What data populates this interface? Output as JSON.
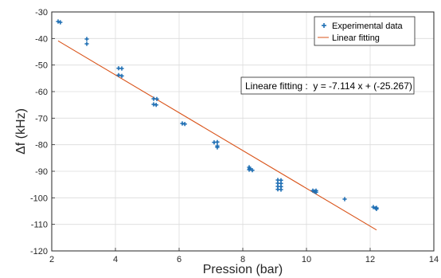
{
  "chart_data": {
    "type": "scatter",
    "xlabel": "Pression (bar)",
    "ylabel": "Δf (kHz)",
    "xlim": [
      2,
      14
    ],
    "ylim": [
      -120,
      -30
    ],
    "xticks": [
      2,
      4,
      6,
      8,
      10,
      12,
      14
    ],
    "yticks": [
      -120,
      -110,
      -100,
      -90,
      -80,
      -70,
      -60,
      -50,
      -40,
      -30
    ],
    "grid": true,
    "legend_position": "top-right",
    "series": [
      {
        "name": "Experimental data",
        "kind": "markers",
        "color": "#1f6fb4",
        "points": [
          [
            2.2,
            -33.6
          ],
          [
            2.27,
            -33.9
          ],
          [
            3.1,
            -40.2
          ],
          [
            3.1,
            -42.0
          ],
          [
            4.1,
            -51.2
          ],
          [
            4.2,
            -51.3
          ],
          [
            4.1,
            -53.8
          ],
          [
            4.2,
            -54.1
          ],
          [
            5.2,
            -62.7
          ],
          [
            5.3,
            -62.8
          ],
          [
            5.2,
            -64.8
          ],
          [
            5.28,
            -65.0
          ],
          [
            6.1,
            -72.0
          ],
          [
            6.18,
            -72.2
          ],
          [
            7.1,
            -79.1
          ],
          [
            7.2,
            -79.0
          ],
          [
            7.2,
            -80.5
          ],
          [
            7.2,
            -81.0
          ],
          [
            8.2,
            -88.5
          ],
          [
            8.2,
            -89.4
          ],
          [
            8.3,
            -89.6
          ],
          [
            8.22,
            -89.0
          ],
          [
            9.1,
            -93.3
          ],
          [
            9.2,
            -93.4
          ],
          [
            9.1,
            -94.5
          ],
          [
            9.2,
            -94.6
          ],
          [
            9.1,
            -95.7
          ],
          [
            9.2,
            -95.8
          ],
          [
            9.1,
            -96.8
          ],
          [
            9.2,
            -96.9
          ],
          [
            10.2,
            -97.3
          ],
          [
            10.3,
            -97.3
          ],
          [
            10.25,
            -97.6
          ],
          [
            10.3,
            -97.9
          ],
          [
            11.2,
            -100.5
          ],
          [
            12.1,
            -103.5
          ],
          [
            12.2,
            -103.8
          ],
          [
            12.2,
            -104.2
          ],
          [
            12.18,
            -103.9
          ]
        ]
      },
      {
        "name": "Linear fitting",
        "kind": "line",
        "color": "#d95319",
        "x": [
          2.2,
          12.2
        ],
        "y": [
          -40.9,
          -112.1
        ]
      }
    ],
    "annotation": "Lineare fitting :  y = -7.114 x + (-25.267)"
  }
}
